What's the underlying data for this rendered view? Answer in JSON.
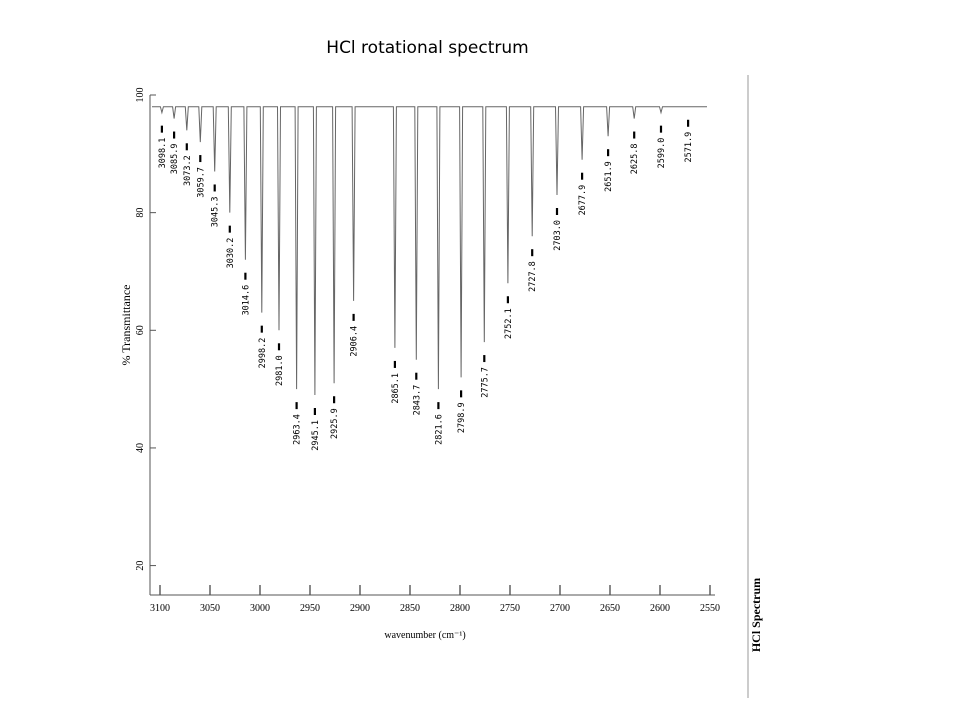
{
  "slide": {
    "title": "HCl rotational spectrum"
  },
  "chart_data": {
    "type": "line",
    "title": "HCl Spectrum",
    "xlabel": "wavenumber (cm⁻¹)",
    "ylabel": "% Transmittance",
    "xlim": [
      3110,
      2545
    ],
    "ylim": [
      15,
      100
    ],
    "x_ticks": [
      3100,
      3050,
      3000,
      2950,
      2900,
      2850,
      2800,
      2750,
      2700,
      2650,
      2600,
      2550
    ],
    "y_ticks": [
      20,
      40,
      60,
      80,
      100
    ],
    "baseline": 98,
    "grid": false,
    "peaks": [
      {
        "label": "3098.1",
        "x": 3098.1,
        "y": 97
      },
      {
        "label": "3085.9",
        "x": 3085.9,
        "y": 96
      },
      {
        "label": "3073.2",
        "x": 3073.2,
        "y": 94
      },
      {
        "label": "3059.7",
        "x": 3059.7,
        "y": 92
      },
      {
        "label": "3045.3",
        "x": 3045.3,
        "y": 87
      },
      {
        "label": "3030.2",
        "x": 3030.2,
        "y": 80
      },
      {
        "label": "3014.6",
        "x": 3014.6,
        "y": 72
      },
      {
        "label": "2998.2",
        "x": 2998.2,
        "y": 63
      },
      {
        "label": "2981.0",
        "x": 2981.0,
        "y": 60
      },
      {
        "label": "2963.4",
        "x": 2963.4,
        "y": 50
      },
      {
        "label": "2945.1",
        "x": 2945.1,
        "y": 49
      },
      {
        "label": "2925.9",
        "x": 2925.9,
        "y": 51
      },
      {
        "label": "2906.4",
        "x": 2906.4,
        "y": 65
      },
      {
        "label": "2865.1",
        "x": 2865.1,
        "y": 57
      },
      {
        "label": "2843.7",
        "x": 2843.7,
        "y": 55
      },
      {
        "label": "2821.6",
        "x": 2821.6,
        "y": 50
      },
      {
        "label": "2798.9",
        "x": 2798.9,
        "y": 52
      },
      {
        "label": "2775.7",
        "x": 2775.7,
        "y": 58
      },
      {
        "label": "2752.1",
        "x": 2752.1,
        "y": 68
      },
      {
        "label": "2727.8",
        "x": 2727.8,
        "y": 76
      },
      {
        "label": "2703.0",
        "x": 2703.0,
        "y": 83
      },
      {
        "label": "2677.9",
        "x": 2677.9,
        "y": 89
      },
      {
        "label": "2651.9",
        "x": 2651.9,
        "y": 93
      },
      {
        "label": "2625.8",
        "x": 2625.8,
        "y": 96
      },
      {
        "label": "2599.0",
        "x": 2599.0,
        "y": 97
      },
      {
        "label": "2571.9",
        "x": 2571.9,
        "y": 98
      }
    ]
  }
}
